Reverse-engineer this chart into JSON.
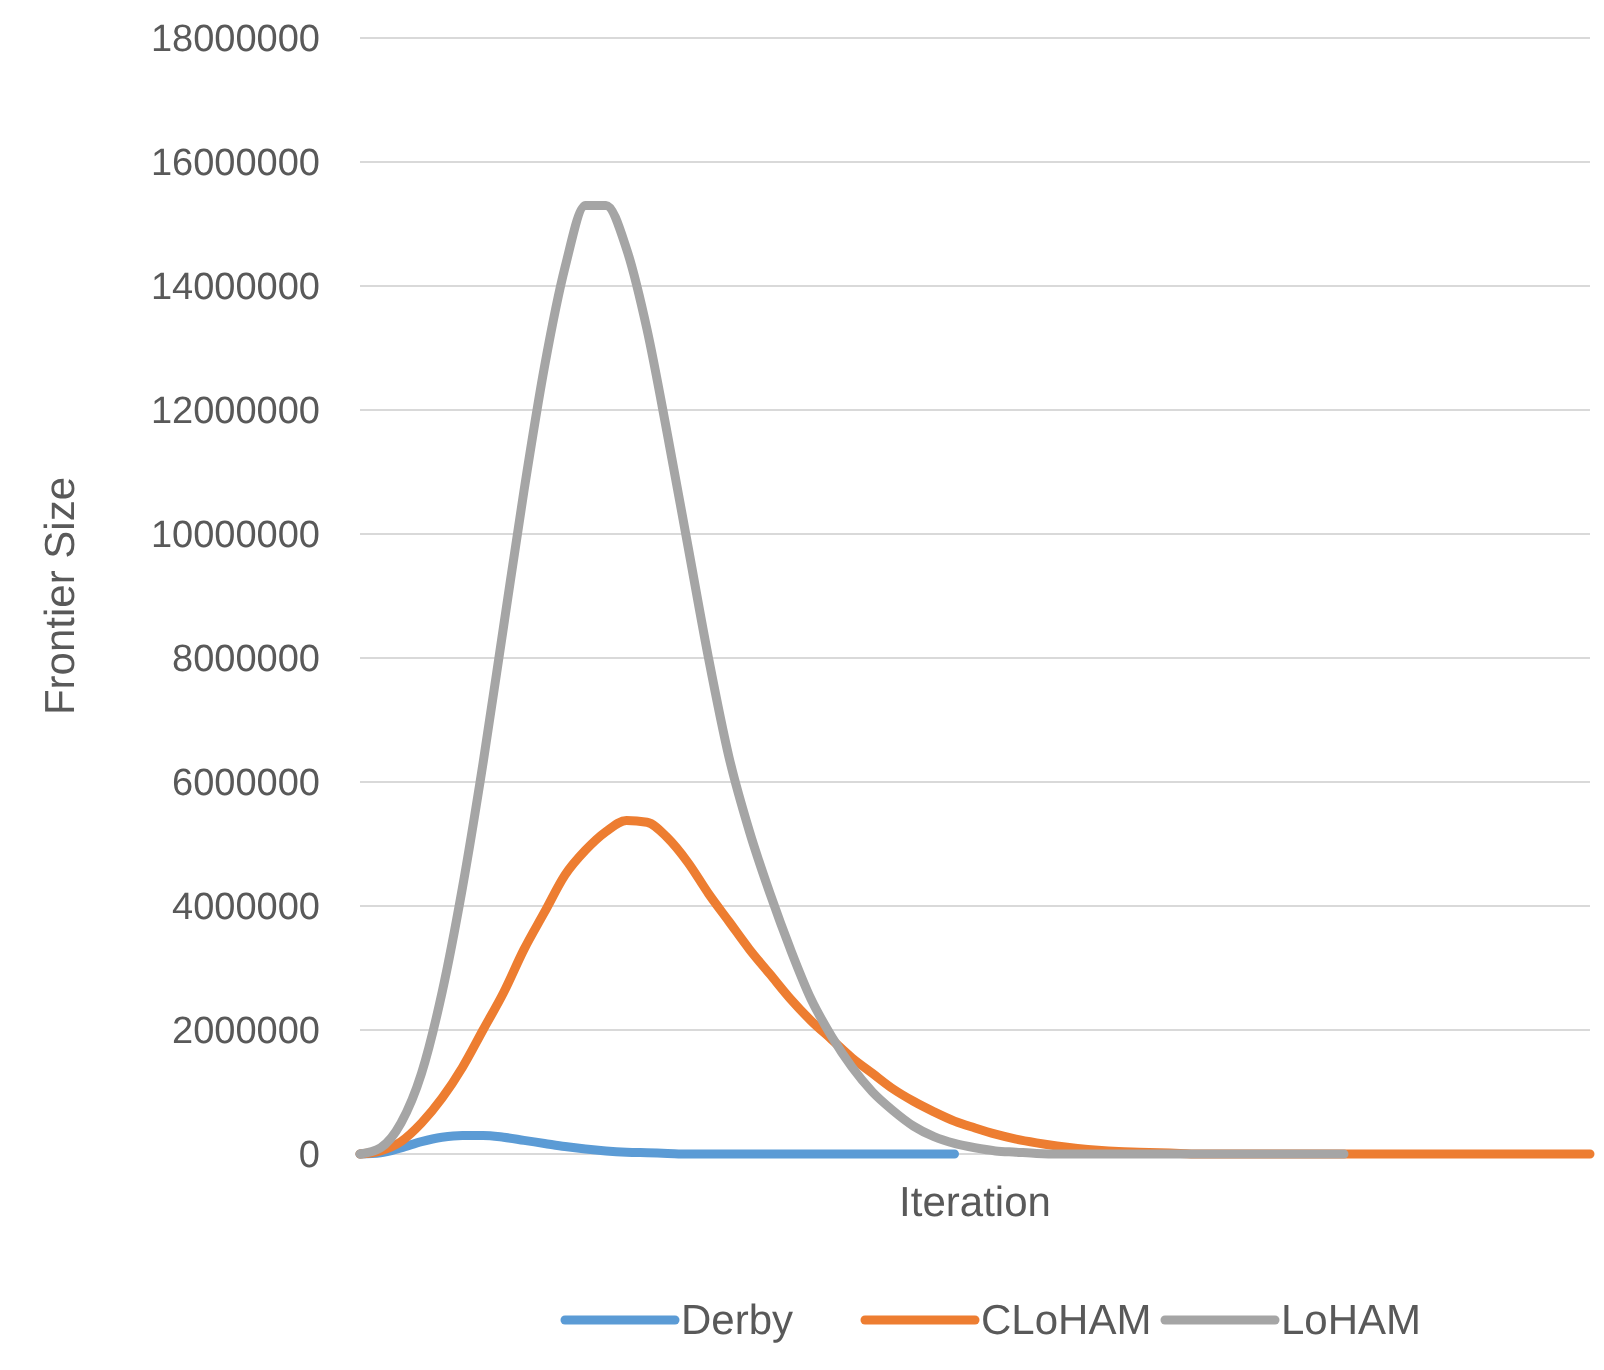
{
  "chart_data": {
    "type": "line",
    "xlabel": "Iteration",
    "ylabel": "Frontier Size",
    "categories": [
      null,
      null,
      null,
      null,
      null,
      null,
      null,
      null,
      null,
      null,
      null,
      null,
      null,
      null,
      null,
      null,
      null,
      null,
      null,
      null,
      null,
      null,
      null,
      null,
      null,
      null,
      null,
      null,
      null,
      null,
      null,
      null,
      null,
      null,
      null,
      null,
      null,
      null,
      null,
      null,
      null,
      null,
      null,
      null,
      null,
      null,
      null,
      null,
      null,
      null,
      null,
      null,
      null,
      null,
      null,
      null,
      null,
      null,
      null,
      null,
      null
    ],
    "series": [
      {
        "name": "Derby",
        "color": "#5b9bd5",
        "values": [
          0,
          20000,
          100000,
          200000,
          270000,
          300000,
          300000,
          270000,
          220000,
          170000,
          120000,
          80000,
          50000,
          30000,
          20000,
          10000,
          0,
          0,
          0,
          0,
          0,
          0,
          0,
          0,
          0,
          0,
          0,
          0,
          0,
          0,
          null,
          null,
          null,
          null,
          null,
          null,
          null,
          null,
          null,
          null,
          null,
          null,
          null,
          null,
          null,
          null,
          null,
          null,
          null,
          null,
          null,
          null,
          null,
          null,
          null,
          null,
          null,
          null,
          null,
          null,
          null
        ]
      },
      {
        "name": "CLoHAM",
        "color": "#ed7d31",
        "values": [
          0,
          50000,
          200000,
          500000,
          900000,
          1400000,
          2000000,
          2600000,
          3300000,
          3900000,
          4500000,
          4900000,
          5200000,
          5380000,
          5350000,
          5100000,
          4700000,
          4200000,
          3750000,
          3300000,
          2900000,
          2500000,
          2150000,
          1850000,
          1550000,
          1300000,
          1050000,
          850000,
          680000,
          530000,
          420000,
          320000,
          240000,
          180000,
          130000,
          90000,
          60000,
          40000,
          30000,
          20000,
          10000,
          0,
          0,
          0,
          0,
          0,
          0,
          0,
          0,
          0,
          0,
          0,
          0,
          0,
          0,
          0,
          0,
          0,
          0,
          0,
          0
        ]
      },
      {
        "name": "LoHAM",
        "color": "#a5a5a5",
        "values": [
          0,
          100000,
          500000,
          1300000,
          2600000,
          4300000,
          6300000,
          8500000,
          10700000,
          12700000,
          14300000,
          15300000,
          15300000,
          14600000,
          13300000,
          11600000,
          9800000,
          8000000,
          6400000,
          5200000,
          4200000,
          3300000,
          2500000,
          1900000,
          1400000,
          1000000,
          700000,
          450000,
          280000,
          170000,
          100000,
          50000,
          30000,
          10000,
          0,
          0,
          0,
          0,
          0,
          0,
          0,
          0,
          0,
          0,
          0,
          0,
          0,
          0,
          0,
          null,
          null,
          null,
          null,
          null,
          null,
          null,
          null,
          null,
          null,
          null,
          null
        ]
      }
    ],
    "ylim": [
      0,
      18000000
    ],
    "yticks": [
      0,
      2000000,
      4000000,
      6000000,
      8000000,
      10000000,
      12000000,
      14000000,
      16000000,
      18000000
    ],
    "grid": "y",
    "legend": "bottom",
    "line_style": "solid",
    "marker": "none"
  }
}
